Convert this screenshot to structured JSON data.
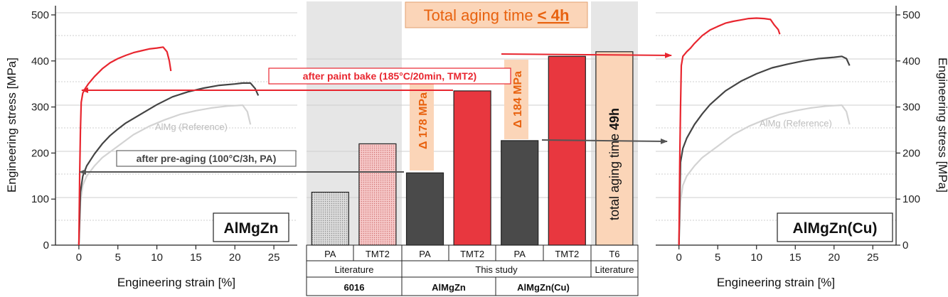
{
  "chart_data": [
    {
      "type": "line",
      "panel": "left",
      "xlabel": "Engineering strain [%]",
      "ylabel": "Engineering stress [MPa]",
      "xlim": [
        -3,
        28
      ],
      "ylim": [
        0,
        520
      ],
      "xticks": [
        "0",
        "5",
        "10",
        "15",
        "20",
        "25"
      ],
      "yticks": [
        "0",
        "100",
        "200",
        "300",
        "400",
        "500"
      ],
      "label": "AlMgZn",
      "grid": "horizontal",
      "series": [
        {
          "name": "after paint bake (185°C/20min, TMT2)",
          "color": "#e8262f",
          "x": [
            0,
            0.1,
            0.2,
            0.3,
            0.5,
            0.8,
            1.2,
            2,
            3,
            4,
            5,
            6,
            7,
            8,
            9,
            10,
            10.8,
            11.3,
            11.6,
            11.8
          ],
          "y": [
            0,
            150,
            250,
            310,
            330,
            340,
            350,
            366,
            383,
            396,
            405,
            412,
            418,
            422,
            426,
            428,
            430,
            420,
            400,
            378
          ]
        },
        {
          "name": "after pre-aging (100°C/3h, PA)",
          "color": "#444444",
          "x": [
            0,
            0.2,
            0.5,
            1,
            2,
            3,
            4,
            5,
            6,
            8,
            10,
            12,
            14,
            16,
            18,
            20,
            21,
            22,
            22.6,
            23
          ],
          "y": [
            0,
            115,
            150,
            172,
            198,
            220,
            238,
            252,
            265,
            285,
            305,
            322,
            333,
            341,
            347,
            350,
            352,
            352,
            340,
            325
          ]
        },
        {
          "name": "AlMg (Reference)",
          "color": "#d3d3d3",
          "x": [
            0,
            0.2,
            0.5,
            1,
            2,
            3,
            5,
            7,
            9,
            11,
            13,
            15,
            17,
            19,
            20,
            21,
            21.6,
            22
          ],
          "y": [
            0,
            95,
            130,
            150,
            172,
            190,
            215,
            240,
            258,
            272,
            284,
            292,
            298,
            302,
            303,
            304,
            290,
            262
          ]
        }
      ],
      "annotations": [
        "after paint bake (185°C/20min, TMT2)",
        "after pre-aging (100°C/3h, PA)",
        "AlMg (Reference)"
      ]
    },
    {
      "type": "bar",
      "panel": "center",
      "title": "Total aging time",
      "title_emph": "< 4h",
      "columns": [
        {
          "state": "PA",
          "source": "Literature",
          "alloy": "6016",
          "value": 115,
          "color": "#cfcfcf",
          "pattern": "dots"
        },
        {
          "state": "TMT2",
          "source": "Literature",
          "alloy": "6016",
          "value": 220,
          "color": "#f3b8b8",
          "pattern": "dots"
        },
        {
          "state": "PA",
          "source": "This study",
          "alloy": "AlMgZn",
          "value": 157,
          "color": "#4a4a4a",
          "pattern": "none"
        },
        {
          "state": "TMT2",
          "source": "This study",
          "alloy": "AlMgZn",
          "value": 335,
          "color": "#e8373f",
          "pattern": "none"
        },
        {
          "state": "PA",
          "source": "This study",
          "alloy": "AlMgZn(Cu)",
          "value": 227,
          "color": "#4a4a4a",
          "pattern": "none"
        },
        {
          "state": "TMT2",
          "source": "This study",
          "alloy": "AlMgZn(Cu)",
          "value": 410,
          "color": "#e8373f",
          "pattern": "none"
        },
        {
          "state": "T6",
          "source": "Literature",
          "alloy": "",
          "value": 420,
          "color": "#fbd5b8",
          "pattern": "none"
        }
      ],
      "table_rows": {
        "sources": [
          "Literature",
          "This study",
          "Literature"
        ],
        "alloys": [
          "6016",
          "AlMgZn",
          "AlMgZn(Cu)"
        ]
      },
      "deltas": [
        "Δ 178 MPa",
        "Δ 184 MPa"
      ],
      "t6_label": "total aging time",
      "t6_emph": "49h"
    },
    {
      "type": "line",
      "panel": "right",
      "xlabel": "Engineering strain [%]",
      "ylabel": "Engineering stress [MPa]",
      "xlim": [
        -3,
        28
      ],
      "ylim": [
        0,
        520
      ],
      "xticks": [
        "0",
        "5",
        "10",
        "15",
        "20",
        "25"
      ],
      "yticks": [
        "0",
        "100",
        "200",
        "300",
        "400",
        "500"
      ],
      "label": "AlMgZn(Cu)",
      "grid": "horizontal",
      "series": [
        {
          "name": "TMT2",
          "color": "#e8262f",
          "x": [
            0,
            0.1,
            0.2,
            0.3,
            0.5,
            1,
            1.5,
            2,
            3,
            4,
            5,
            6,
            7,
            8,
            9,
            10,
            11,
            11.8,
            12.3,
            12.8,
            13
          ],
          "y": [
            0,
            180,
            300,
            390,
            410,
            420,
            428,
            438,
            455,
            467,
            475,
            482,
            486,
            489,
            492,
            493,
            492,
            490,
            478,
            468,
            458
          ]
        },
        {
          "name": "PA",
          "color": "#444444",
          "x": [
            0,
            0.2,
            0.5,
            1,
            2,
            3,
            4,
            5,
            6,
            8,
            10,
            12,
            14,
            16,
            18,
            20,
            21,
            21.6,
            22
          ],
          "y": [
            0,
            180,
            210,
            232,
            262,
            285,
            305,
            320,
            335,
            356,
            372,
            385,
            393,
            400,
            405,
            408,
            410,
            405,
            390
          ]
        },
        {
          "name": "AlMg (Reference)",
          "color": "#d3d3d3",
          "x": [
            0,
            0.2,
            0.5,
            1,
            2,
            3,
            5,
            7,
            9,
            11,
            13,
            15,
            17,
            19,
            20,
            21,
            21.6,
            22
          ],
          "y": [
            0,
            95,
            130,
            150,
            172,
            190,
            215,
            240,
            258,
            272,
            284,
            292,
            298,
            302,
            303,
            304,
            290,
            262
          ]
        }
      ],
      "annotations": [
        "AlMg (Reference)"
      ]
    }
  ]
}
